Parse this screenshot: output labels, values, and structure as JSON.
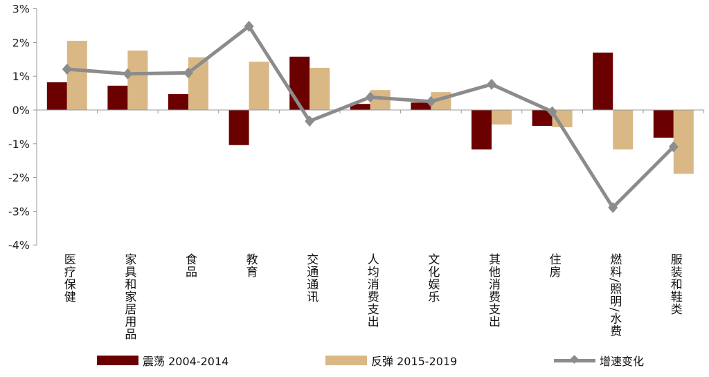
{
  "chart_data": {
    "type": "bar",
    "title": "",
    "xlabel": "",
    "ylabel": "",
    "ylim": [
      -4,
      3
    ],
    "yticks": [
      "-4%",
      "-3%",
      "-2%",
      "-1%",
      "0%",
      "1%",
      "2%",
      "3%"
    ],
    "categories": [
      "医疗保健",
      "家具和家居用品",
      "食品",
      "教育",
      "交通通讯",
      "人均消费支出",
      "文化娱乐",
      "其他消费支出",
      "住房",
      "燃料/照明/水费",
      "服装和鞋类"
    ],
    "series": [
      {
        "name": "震荡 2004-2014",
        "kind": "bar",
        "color": "#6b0000",
        "values": [
          0.82,
          0.72,
          0.47,
          -1.04,
          1.58,
          0.18,
          0.22,
          -1.17,
          -0.47,
          1.7,
          -0.82
        ]
      },
      {
        "name": "反弹 2015-2019",
        "kind": "bar",
        "color": "#d9b886",
        "values": [
          2.05,
          1.76,
          1.56,
          1.43,
          1.25,
          0.59,
          0.53,
          -0.43,
          -0.51,
          -1.17,
          -1.89
        ]
      },
      {
        "name": "增速变化",
        "kind": "line",
        "color": "#8c8c8c",
        "values": [
          1.21,
          1.07,
          1.1,
          2.48,
          -0.33,
          0.38,
          0.25,
          0.76,
          -0.05,
          -2.89,
          -1.09
        ]
      }
    ],
    "legend_placement": "bottom",
    "grid": false
  }
}
